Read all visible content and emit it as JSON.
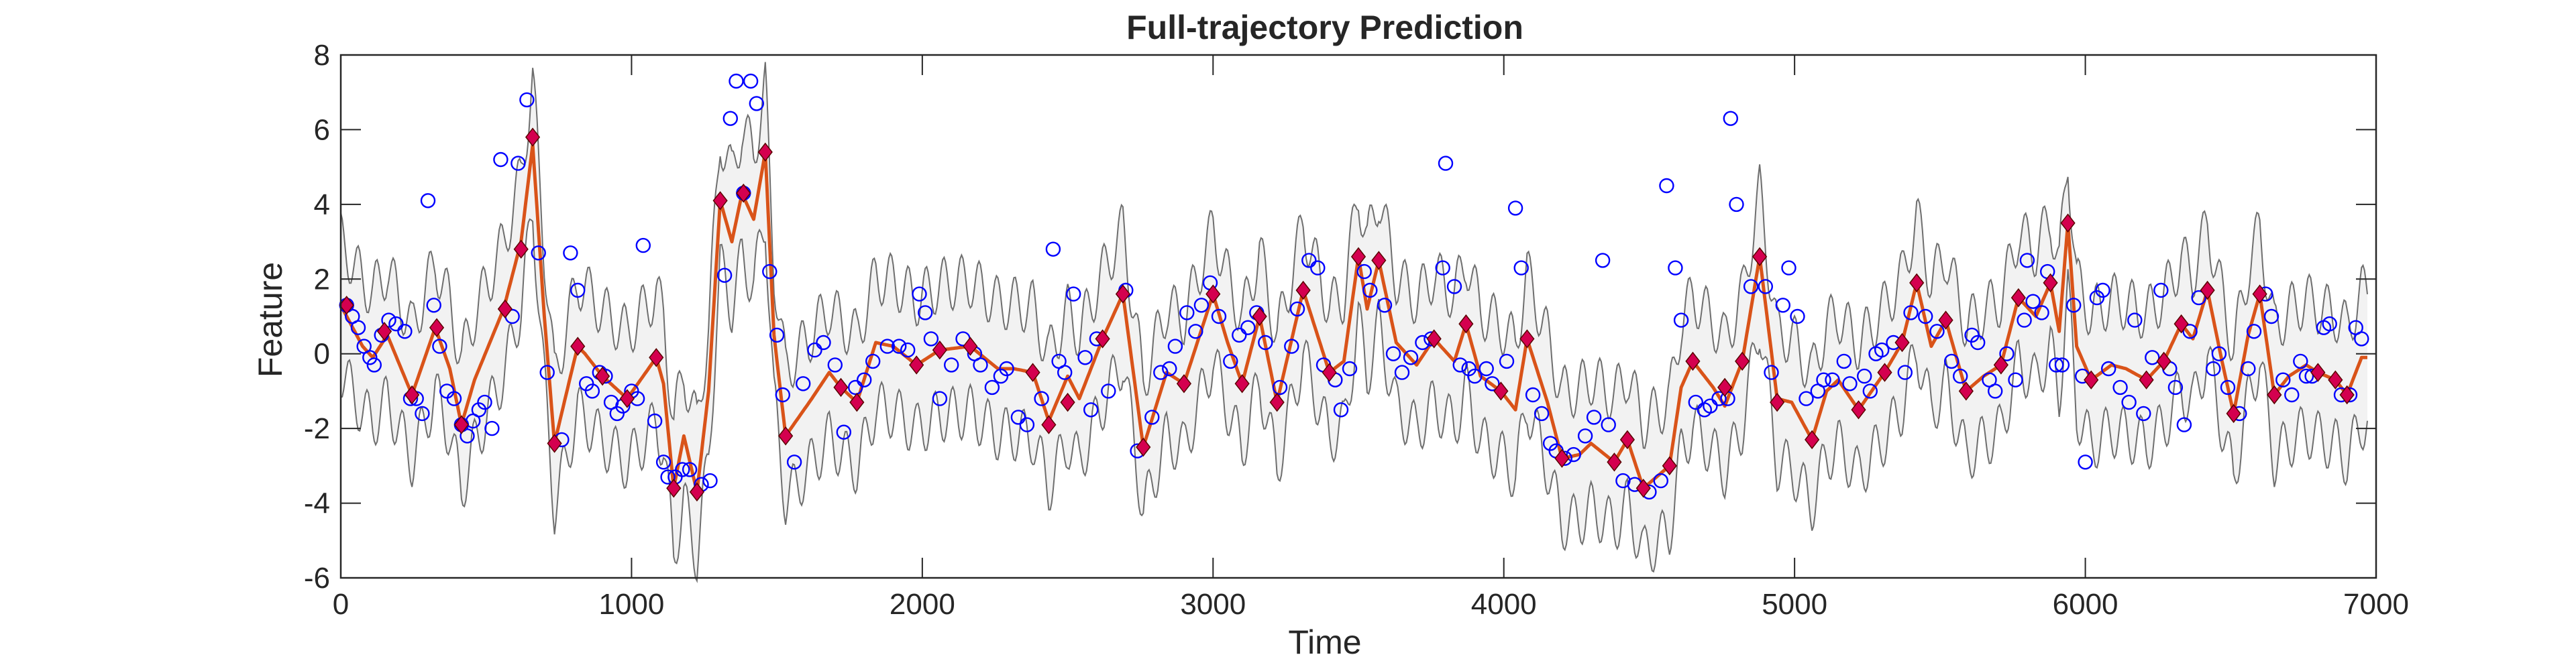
{
  "chart_data": {
    "type": "line",
    "title": "Full-trajectory Prediction",
    "xlabel": "Time",
    "ylabel": "Feature",
    "xlim": [
      0,
      7000
    ],
    "ylim": [
      -6,
      8
    ],
    "xticks": [
      0,
      1000,
      2000,
      3000,
      4000,
      5000,
      6000,
      7000
    ],
    "yticks": [
      -6,
      -4,
      -2,
      0,
      2,
      4,
      6,
      8
    ],
    "xtick_labels": [
      "0",
      "1000",
      "2000",
      "3000",
      "4000",
      "5000",
      "6000",
      "7000"
    ],
    "ytick_labels": [
      "-6",
      "-4",
      "-2",
      "0",
      "2",
      "4",
      "6",
      "8"
    ],
    "grid": false,
    "legend": "none",
    "colors": {
      "band_fill": "#f2f2f2",
      "band_edge": "#6e6e6e",
      "mean_line": "#d95319",
      "markers": "#d4004f",
      "observations": "#0000ff",
      "axes": "#262626"
    },
    "band_oscillation": {
      "period": 61,
      "amplitude": 0.72
    },
    "mean_knots": [
      [
        0,
        1.3
      ],
      [
        75,
        0.2
      ],
      [
        110,
        -0.1
      ],
      [
        160,
        0.5
      ],
      [
        245,
        -1.1
      ],
      [
        325,
        0.7
      ],
      [
        375,
        -0.4
      ],
      [
        415,
        -1.9
      ],
      [
        460,
        -0.7
      ],
      [
        560,
        1.2
      ],
      [
        620,
        3.0
      ],
      [
        660,
        5.6
      ],
      [
        700,
        1.0
      ],
      [
        735,
        -2.4
      ],
      [
        790,
        -0.6
      ],
      [
        815,
        0.2
      ],
      [
        840,
        0.0
      ],
      [
        900,
        -0.6
      ],
      [
        985,
        -1.2
      ],
      [
        1040,
        -0.6
      ],
      [
        1085,
        -0.1
      ],
      [
        1110,
        -0.8
      ],
      [
        1145,
        -3.6
      ],
      [
        1180,
        -2.2
      ],
      [
        1225,
        -3.7
      ],
      [
        1265,
        -1.0
      ],
      [
        1305,
        4.1
      ],
      [
        1345,
        3.0
      ],
      [
        1380,
        4.3
      ],
      [
        1420,
        3.6
      ],
      [
        1460,
        5.4
      ],
      [
        1490,
        0.5
      ],
      [
        1530,
        -2.2
      ],
      [
        1620,
        -1.2
      ],
      [
        1680,
        -0.5
      ],
      [
        1720,
        -0.9
      ],
      [
        1775,
        -1.3
      ],
      [
        1840,
        0.3
      ],
      [
        1900,
        0.2
      ],
      [
        1980,
        -0.3
      ],
      [
        2060,
        0.1
      ],
      [
        2165,
        0.2
      ],
      [
        2260,
        -0.4
      ],
      [
        2315,
        -0.4
      ],
      [
        2380,
        -0.5
      ],
      [
        2435,
        -1.8
      ],
      [
        2500,
        -0.6
      ],
      [
        2540,
        -1.2
      ],
      [
        2620,
        0.4
      ],
      [
        2690,
        1.6
      ],
      [
        2760,
        -2.5
      ],
      [
        2840,
        -0.5
      ],
      [
        2900,
        -0.8
      ],
      [
        3000,
        1.6
      ],
      [
        3050,
        0.3
      ],
      [
        3100,
        -0.8
      ],
      [
        3160,
        1.0
      ],
      [
        3220,
        -1.3
      ],
      [
        3310,
        1.7
      ],
      [
        3400,
        -0.5
      ],
      [
        3450,
        -0.2
      ],
      [
        3500,
        2.6
      ],
      [
        3530,
        1.2
      ],
      [
        3570,
        2.5
      ],
      [
        3630,
        0.3
      ],
      [
        3700,
        -0.3
      ],
      [
        3760,
        0.4
      ],
      [
        3830,
        -0.2
      ],
      [
        3870,
        0.8
      ],
      [
        3920,
        -0.6
      ],
      [
        3990,
        -1.0
      ],
      [
        4040,
        -1.5
      ],
      [
        4080,
        0.4
      ],
      [
        4150,
        -1.3
      ],
      [
        4200,
        -2.8
      ],
      [
        4260,
        -2.7
      ],
      [
        4300,
        -2.4
      ],
      [
        4380,
        -2.9
      ],
      [
        4425,
        -2.3
      ],
      [
        4480,
        -3.6
      ],
      [
        4570,
        -3.0
      ],
      [
        4610,
        -0.9
      ],
      [
        4650,
        -0.2
      ],
      [
        4720,
        -0.9
      ],
      [
        4760,
        -1.4
      ],
      [
        4820,
        -0.2
      ],
      [
        4880,
        2.6
      ],
      [
        4940,
        -1.2
      ],
      [
        4990,
        -1.3
      ],
      [
        5060,
        -2.3
      ],
      [
        5110,
        -1.0
      ],
      [
        5150,
        -0.7
      ],
      [
        5220,
        -1.5
      ],
      [
        5310,
        -0.5
      ],
      [
        5370,
        0.3
      ],
      [
        5420,
        1.9
      ],
      [
        5470,
        0.2
      ],
      [
        5520,
        0.9
      ],
      [
        5590,
        -1.0
      ],
      [
        5650,
        -0.6
      ],
      [
        5710,
        -0.3
      ],
      [
        5770,
        1.5
      ],
      [
        5830,
        1.0
      ],
      [
        5880,
        1.9
      ],
      [
        5910,
        0.6
      ],
      [
        5940,
        3.5
      ],
      [
        5970,
        0.2
      ],
      [
        6020,
        -0.7
      ],
      [
        6090,
        -0.3
      ],
      [
        6140,
        -0.4
      ],
      [
        6210,
        -0.7
      ],
      [
        6270,
        -0.2
      ],
      [
        6330,
        0.8
      ],
      [
        6370,
        0.4
      ],
      [
        6420,
        1.7
      ],
      [
        6470,
        -0.2
      ],
      [
        6510,
        -1.6
      ],
      [
        6560,
        0.5
      ],
      [
        6600,
        1.6
      ],
      [
        6650,
        -1.1
      ],
      [
        6700,
        -0.6
      ],
      [
        6760,
        -0.3
      ],
      [
        6800,
        -0.5
      ],
      [
        6860,
        -0.7
      ],
      [
        6900,
        -1.1
      ],
      [
        6950,
        -0.1
      ]
    ],
    "predicted_markers": [
      [
        20,
        1.3
      ],
      [
        150,
        0.6
      ],
      [
        245,
        -1.1
      ],
      [
        330,
        0.7
      ],
      [
        415,
        -1.9
      ],
      [
        565,
        1.2
      ],
      [
        620,
        2.8
      ],
      [
        660,
        5.8
      ],
      [
        735,
        -2.4
      ],
      [
        815,
        0.2
      ],
      [
        900,
        -0.6
      ],
      [
        985,
        -1.2
      ],
      [
        1085,
        -0.1
      ],
      [
        1145,
        -3.6
      ],
      [
        1225,
        -3.7
      ],
      [
        1305,
        4.1
      ],
      [
        1385,
        4.3
      ],
      [
        1460,
        5.4
      ],
      [
        1530,
        -2.2
      ],
      [
        1720,
        -0.9
      ],
      [
        1775,
        -1.3
      ],
      [
        1980,
        -0.3
      ],
      [
        2060,
        0.1
      ],
      [
        2165,
        0.2
      ],
      [
        2380,
        -0.5
      ],
      [
        2435,
        -1.9
      ],
      [
        2500,
        -1.3
      ],
      [
        2620,
        0.4
      ],
      [
        2690,
        1.6
      ],
      [
        2760,
        -2.5
      ],
      [
        2900,
        -0.8
      ],
      [
        3000,
        1.6
      ],
      [
        3100,
        -0.8
      ],
      [
        3160,
        1.0
      ],
      [
        3220,
        -1.3
      ],
      [
        3310,
        1.7
      ],
      [
        3400,
        -0.5
      ],
      [
        3500,
        2.6
      ],
      [
        3570,
        2.5
      ],
      [
        3760,
        0.4
      ],
      [
        3870,
        0.8
      ],
      [
        3990,
        -1.0
      ],
      [
        4080,
        0.4
      ],
      [
        4200,
        -2.8
      ],
      [
        4380,
        -2.9
      ],
      [
        4425,
        -2.3
      ],
      [
        4480,
        -3.6
      ],
      [
        4570,
        -3.0
      ],
      [
        4650,
        -0.2
      ],
      [
        4760,
        -0.9
      ],
      [
        4820,
        -0.2
      ],
      [
        4880,
        2.6
      ],
      [
        4940,
        -1.3
      ],
      [
        5060,
        -2.3
      ],
      [
        5220,
        -1.5
      ],
      [
        5310,
        -0.5
      ],
      [
        5370,
        0.3
      ],
      [
        5420,
        1.9
      ],
      [
        5520,
        0.9
      ],
      [
        5590,
        -1.0
      ],
      [
        5710,
        -0.3
      ],
      [
        5770,
        1.5
      ],
      [
        5880,
        1.9
      ],
      [
        5940,
        3.5
      ],
      [
        6020,
        -0.7
      ],
      [
        6210,
        -0.7
      ],
      [
        6270,
        -0.2
      ],
      [
        6330,
        0.8
      ],
      [
        6420,
        1.7
      ],
      [
        6510,
        -1.6
      ],
      [
        6600,
        1.6
      ],
      [
        6650,
        -1.1
      ],
      [
        6800,
        -0.5
      ],
      [
        6860,
        -0.7
      ],
      [
        6900,
        -1.1
      ]
    ],
    "observations": [
      [
        20,
        1.3
      ],
      [
        40,
        1.0
      ],
      [
        60,
        0.7
      ],
      [
        80,
        0.2
      ],
      [
        100,
        -0.1
      ],
      [
        115,
        -0.3
      ],
      [
        140,
        0.5
      ],
      [
        165,
        0.9
      ],
      [
        190,
        0.8
      ],
      [
        220,
        0.6
      ],
      [
        240,
        -1.2
      ],
      [
        260,
        -1.2
      ],
      [
        280,
        -1.6
      ],
      [
        300,
        4.1
      ],
      [
        320,
        1.3
      ],
      [
        340,
        0.2
      ],
      [
        365,
        -1.0
      ],
      [
        390,
        -1.2
      ],
      [
        415,
        -1.9
      ],
      [
        435,
        -2.2
      ],
      [
        455,
        -1.8
      ],
      [
        475,
        -1.5
      ],
      [
        495,
        -1.3
      ],
      [
        520,
        -2.0
      ],
      [
        550,
        5.2
      ],
      [
        590,
        1.0
      ],
      [
        610,
        5.1
      ],
      [
        640,
        6.8
      ],
      [
        680,
        2.7
      ],
      [
        710,
        -0.5
      ],
      [
        760,
        -2.3
      ],
      [
        790,
        2.7
      ],
      [
        815,
        1.7
      ],
      [
        845,
        -0.8
      ],
      [
        865,
        -1.0
      ],
      [
        890,
        -0.5
      ],
      [
        910,
        -0.6
      ],
      [
        930,
        -1.3
      ],
      [
        950,
        -1.6
      ],
      [
        970,
        -1.4
      ],
      [
        1000,
        -1.0
      ],
      [
        1020,
        -1.2
      ],
      [
        1040,
        2.9
      ],
      [
        1080,
        -1.8
      ],
      [
        1110,
        -2.9
      ],
      [
        1125,
        -3.3
      ],
      [
        1150,
        -3.3
      ],
      [
        1175,
        -3.1
      ],
      [
        1200,
        -3.1
      ],
      [
        1240,
        -3.5
      ],
      [
        1270,
        -3.4
      ],
      [
        1320,
        2.1
      ],
      [
        1340,
        6.3
      ],
      [
        1360,
        7.3
      ],
      [
        1385,
        4.3
      ],
      [
        1410,
        7.3
      ],
      [
        1430,
        6.7
      ],
      [
        1475,
        2.2
      ],
      [
        1500,
        0.5
      ],
      [
        1520,
        -1.1
      ],
      [
        1560,
        -2.9
      ],
      [
        1590,
        -0.8
      ],
      [
        1630,
        0.1
      ],
      [
        1660,
        0.3
      ],
      [
        1700,
        -0.3
      ],
      [
        1730,
        -2.1
      ],
      [
        1770,
        -0.9
      ],
      [
        1800,
        -0.7
      ],
      [
        1830,
        -0.2
      ],
      [
        1880,
        0.2
      ],
      [
        1920,
        0.2
      ],
      [
        1950,
        0.1
      ],
      [
        1990,
        1.6
      ],
      [
        2010,
        1.1
      ],
      [
        2030,
        0.4
      ],
      [
        2060,
        -1.2
      ],
      [
        2100,
        -0.3
      ],
      [
        2140,
        0.4
      ],
      [
        2180,
        0.0
      ],
      [
        2200,
        -0.3
      ],
      [
        2240,
        -0.9
      ],
      [
        2270,
        -0.6
      ],
      [
        2290,
        -0.4
      ],
      [
        2330,
        -1.7
      ],
      [
        2360,
        -1.9
      ],
      [
        2410,
        -1.2
      ],
      [
        2450,
        2.8
      ],
      [
        2470,
        -0.2
      ],
      [
        2490,
        -0.5
      ],
      [
        2520,
        1.6
      ],
      [
        2560,
        -0.1
      ],
      [
        2580,
        -1.5
      ],
      [
        2600,
        0.4
      ],
      [
        2640,
        -1.0
      ],
      [
        2700,
        1.7
      ],
      [
        2740,
        -2.6
      ],
      [
        2790,
        -1.7
      ],
      [
        2820,
        -0.5
      ],
      [
        2850,
        -0.4
      ],
      [
        2870,
        0.2
      ],
      [
        2910,
        1.1
      ],
      [
        2940,
        0.6
      ],
      [
        2960,
        1.3
      ],
      [
        2990,
        1.9
      ],
      [
        3020,
        1.0
      ],
      [
        3060,
        -0.2
      ],
      [
        3090,
        0.5
      ],
      [
        3120,
        0.7
      ],
      [
        3150,
        1.1
      ],
      [
        3180,
        0.3
      ],
      [
        3230,
        -0.9
      ],
      [
        3270,
        0.2
      ],
      [
        3290,
        1.2
      ],
      [
        3330,
        2.5
      ],
      [
        3360,
        2.3
      ],
      [
        3380,
        -0.3
      ],
      [
        3420,
        -0.7
      ],
      [
        3440,
        -1.5
      ],
      [
        3470,
        -0.4
      ],
      [
        3520,
        2.2
      ],
      [
        3540,
        1.7
      ],
      [
        3590,
        1.3
      ],
      [
        3620,
        0.0
      ],
      [
        3650,
        -0.5
      ],
      [
        3680,
        -0.1
      ],
      [
        3720,
        0.3
      ],
      [
        3750,
        0.4
      ],
      [
        3790,
        2.3
      ],
      [
        3800,
        5.1
      ],
      [
        3830,
        1.8
      ],
      [
        3850,
        -0.3
      ],
      [
        3880,
        -0.4
      ],
      [
        3900,
        -0.6
      ],
      [
        3940,
        -0.4
      ],
      [
        3960,
        -0.8
      ],
      [
        4010,
        -0.2
      ],
      [
        4040,
        3.9
      ],
      [
        4060,
        2.3
      ],
      [
        4100,
        -1.1
      ],
      [
        4130,
        -1.6
      ],
      [
        4160,
        -2.4
      ],
      [
        4180,
        -2.6
      ],
      [
        4210,
        -2.8
      ],
      [
        4240,
        -2.7
      ],
      [
        4280,
        -2.2
      ],
      [
        4310,
        -1.7
      ],
      [
        4340,
        2.5
      ],
      [
        4360,
        -1.9
      ],
      [
        4410,
        -3.4
      ],
      [
        4450,
        -3.5
      ],
      [
        4500,
        -3.7
      ],
      [
        4540,
        -3.4
      ],
      [
        4560,
        4.5
      ],
      [
        4590,
        2.3
      ],
      [
        4610,
        0.9
      ],
      [
        4660,
        -1.3
      ],
      [
        4690,
        -1.5
      ],
      [
        4710,
        -1.4
      ],
      [
        4740,
        -1.2
      ],
      [
        4770,
        -1.2
      ],
      [
        4780,
        6.3
      ],
      [
        4800,
        4.0
      ],
      [
        4850,
        1.8
      ],
      [
        4900,
        1.8
      ],
      [
        4920,
        -0.5
      ],
      [
        4960,
        1.3
      ],
      [
        4980,
        2.3
      ],
      [
        5010,
        1.0
      ],
      [
        5040,
        -1.2
      ],
      [
        5080,
        -1.0
      ],
      [
        5100,
        -0.7
      ],
      [
        5130,
        -0.7
      ],
      [
        5170,
        -0.2
      ],
      [
        5190,
        -0.8
      ],
      [
        5240,
        -0.6
      ],
      [
        5260,
        -1.0
      ],
      [
        5280,
        0.0
      ],
      [
        5300,
        0.1
      ],
      [
        5340,
        0.3
      ],
      [
        5380,
        -0.5
      ],
      [
        5400,
        1.1
      ],
      [
        5450,
        1.0
      ],
      [
        5490,
        0.6
      ],
      [
        5540,
        -0.2
      ],
      [
        5570,
        -0.6
      ],
      [
        5610,
        0.5
      ],
      [
        5630,
        0.3
      ],
      [
        5670,
        -0.7
      ],
      [
        5690,
        -1.0
      ],
      [
        5730,
        0.0
      ],
      [
        5760,
        -0.7
      ],
      [
        5790,
        0.9
      ],
      [
        5800,
        2.5
      ],
      [
        5820,
        1.4
      ],
      [
        5850,
        1.1
      ],
      [
        5870,
        2.2
      ],
      [
        5900,
        -0.3
      ],
      [
        5920,
        -0.3
      ],
      [
        5960,
        1.3
      ],
      [
        5990,
        -0.6
      ],
      [
        6000,
        -2.9
      ],
      [
        6040,
        1.5
      ],
      [
        6060,
        1.7
      ],
      [
        6080,
        -0.4
      ],
      [
        6120,
        -0.9
      ],
      [
        6150,
        -1.3
      ],
      [
        6170,
        0.9
      ],
      [
        6200,
        -1.6
      ],
      [
        6230,
        -0.1
      ],
      [
        6260,
        1.7
      ],
      [
        6290,
        -0.4
      ],
      [
        6310,
        -0.9
      ],
      [
        6340,
        -1.9
      ],
      [
        6360,
        0.6
      ],
      [
        6390,
        1.5
      ],
      [
        6440,
        -0.4
      ],
      [
        6460,
        0.0
      ],
      [
        6490,
        -0.9
      ],
      [
        6530,
        -1.6
      ],
      [
        6560,
        -0.4
      ],
      [
        6580,
        0.6
      ],
      [
        6620,
        1.6
      ],
      [
        6640,
        1.0
      ],
      [
        6680,
        -0.7
      ],
      [
        6710,
        -1.1
      ],
      [
        6740,
        -0.2
      ],
      [
        6760,
        -0.6
      ],
      [
        6780,
        -0.6
      ],
      [
        6820,
        0.7
      ],
      [
        6840,
        0.8
      ],
      [
        6880,
        -1.1
      ],
      [
        6910,
        -1.1
      ],
      [
        6930,
        0.7
      ],
      [
        6950,
        0.4
      ]
    ]
  }
}
